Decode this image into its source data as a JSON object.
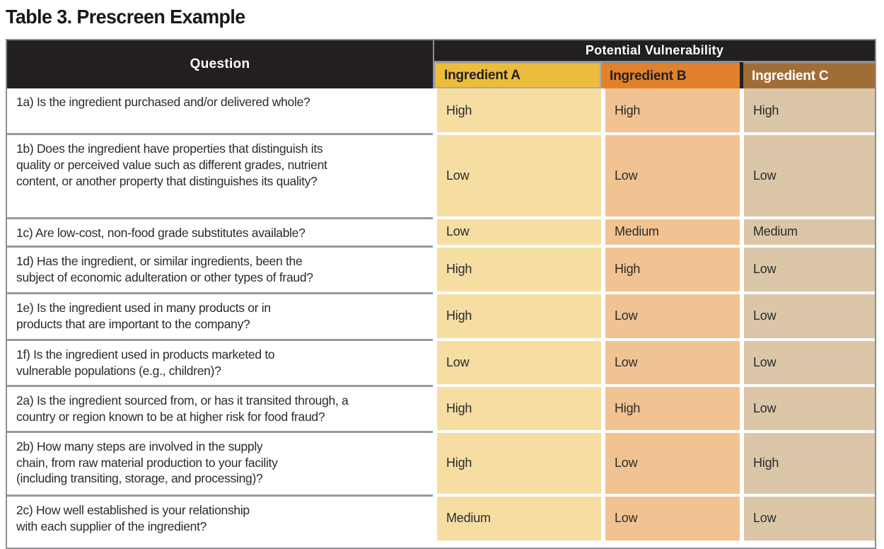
{
  "title": "Table 3. Prescreen Example",
  "table": {
    "question_header": "Question",
    "group_header": "Potential Vulnerability",
    "colors": {
      "header_black": "#231f20",
      "rule_gray": "#97999b",
      "outer_border_gray": "#8d8f92"
    },
    "columns": [
      {
        "label": "Ingredient A",
        "header_bg": "#ecbd3c",
        "header_text": "#231f20",
        "cell_bg": "#f6dea3"
      },
      {
        "label": "Ingredient B",
        "header_bg": "#e2812b",
        "header_text": "#231f20",
        "cell_bg": "#f2c392"
      },
      {
        "label": "Ingredient C",
        "header_bg": "#a16d37",
        "header_text": "#ffffff",
        "cell_bg": "#dbc7a8"
      }
    ],
    "rows": [
      {
        "question": "1a) Is the ingredient purchased and/or delivered whole?",
        "values": [
          "High",
          "High",
          "High"
        ]
      },
      {
        "question": "1b) Does the ingredient have properties that distinguish its\nquality or perceived value such as different grades, nutrient\ncontent, or another property that distinguishes its quality?",
        "values": [
          "Low",
          "Low",
          "Low"
        ]
      },
      {
        "question": "1c) Are low-cost, non-food grade substitutes available?",
        "values": [
          "Low",
          "Medium",
          "Medium"
        ]
      },
      {
        "question": "1d) Has the ingredient, or similar ingredients, been the\nsubject of economic adulteration or other types of fraud?",
        "values": [
          "High",
          "High",
          "Low"
        ]
      },
      {
        "question": "1e) Is the ingredient used in many products or in\nproducts that are important to the company?",
        "values": [
          "High",
          "Low",
          "Low"
        ]
      },
      {
        "question": "1f) Is the ingredient used in products marketed to\nvulnerable populations (e.g., children)?",
        "values": [
          "Low",
          "Low",
          "Low"
        ]
      },
      {
        "question": "2a) Is the ingredient sourced from, or has it transited through, a\ncountry or region known to be at higher risk for food fraud?",
        "values": [
          "High",
          "High",
          "Low"
        ]
      },
      {
        "question": "2b) How many steps are involved in the supply\nchain, from raw material production to your facility\n(including transiting, storage, and processing)?",
        "values": [
          "High",
          "Low",
          "High"
        ]
      },
      {
        "question": "2c) How well established is your relationship\nwith each supplier of the ingredient?",
        "values": [
          "Medium",
          "Low",
          "Low"
        ]
      }
    ]
  }
}
